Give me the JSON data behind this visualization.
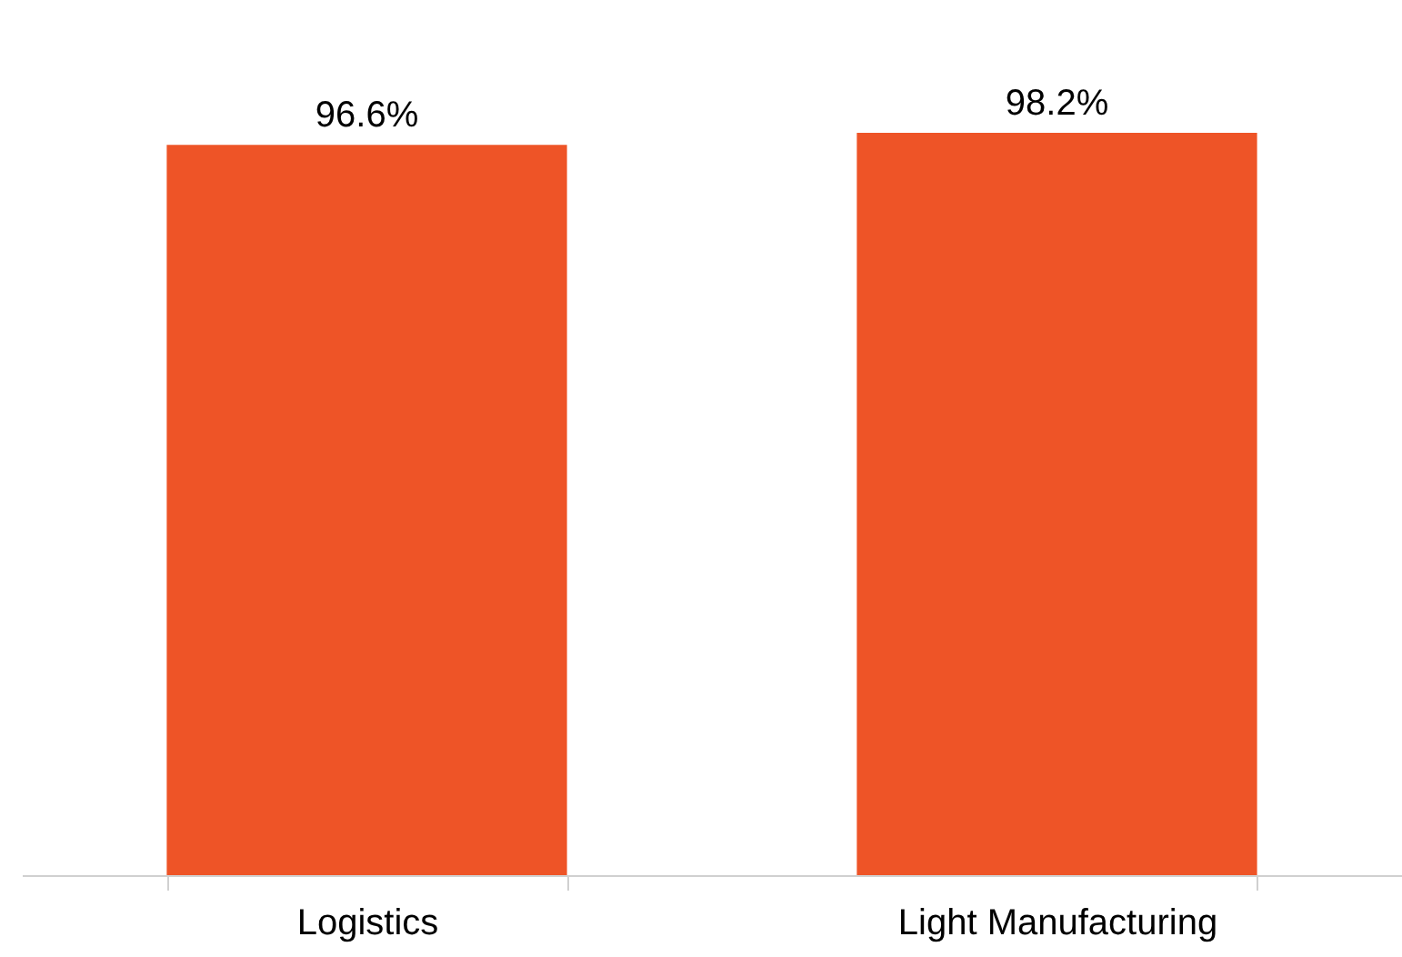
{
  "chart_data": {
    "type": "bar",
    "categories": [
      "Logistics",
      "Light Manufacturing"
    ],
    "values": [
      96.6,
      98.2
    ],
    "value_labels": [
      "96.6%",
      "98.2%"
    ],
    "color": "#ee5427",
    "grid": false
  }
}
